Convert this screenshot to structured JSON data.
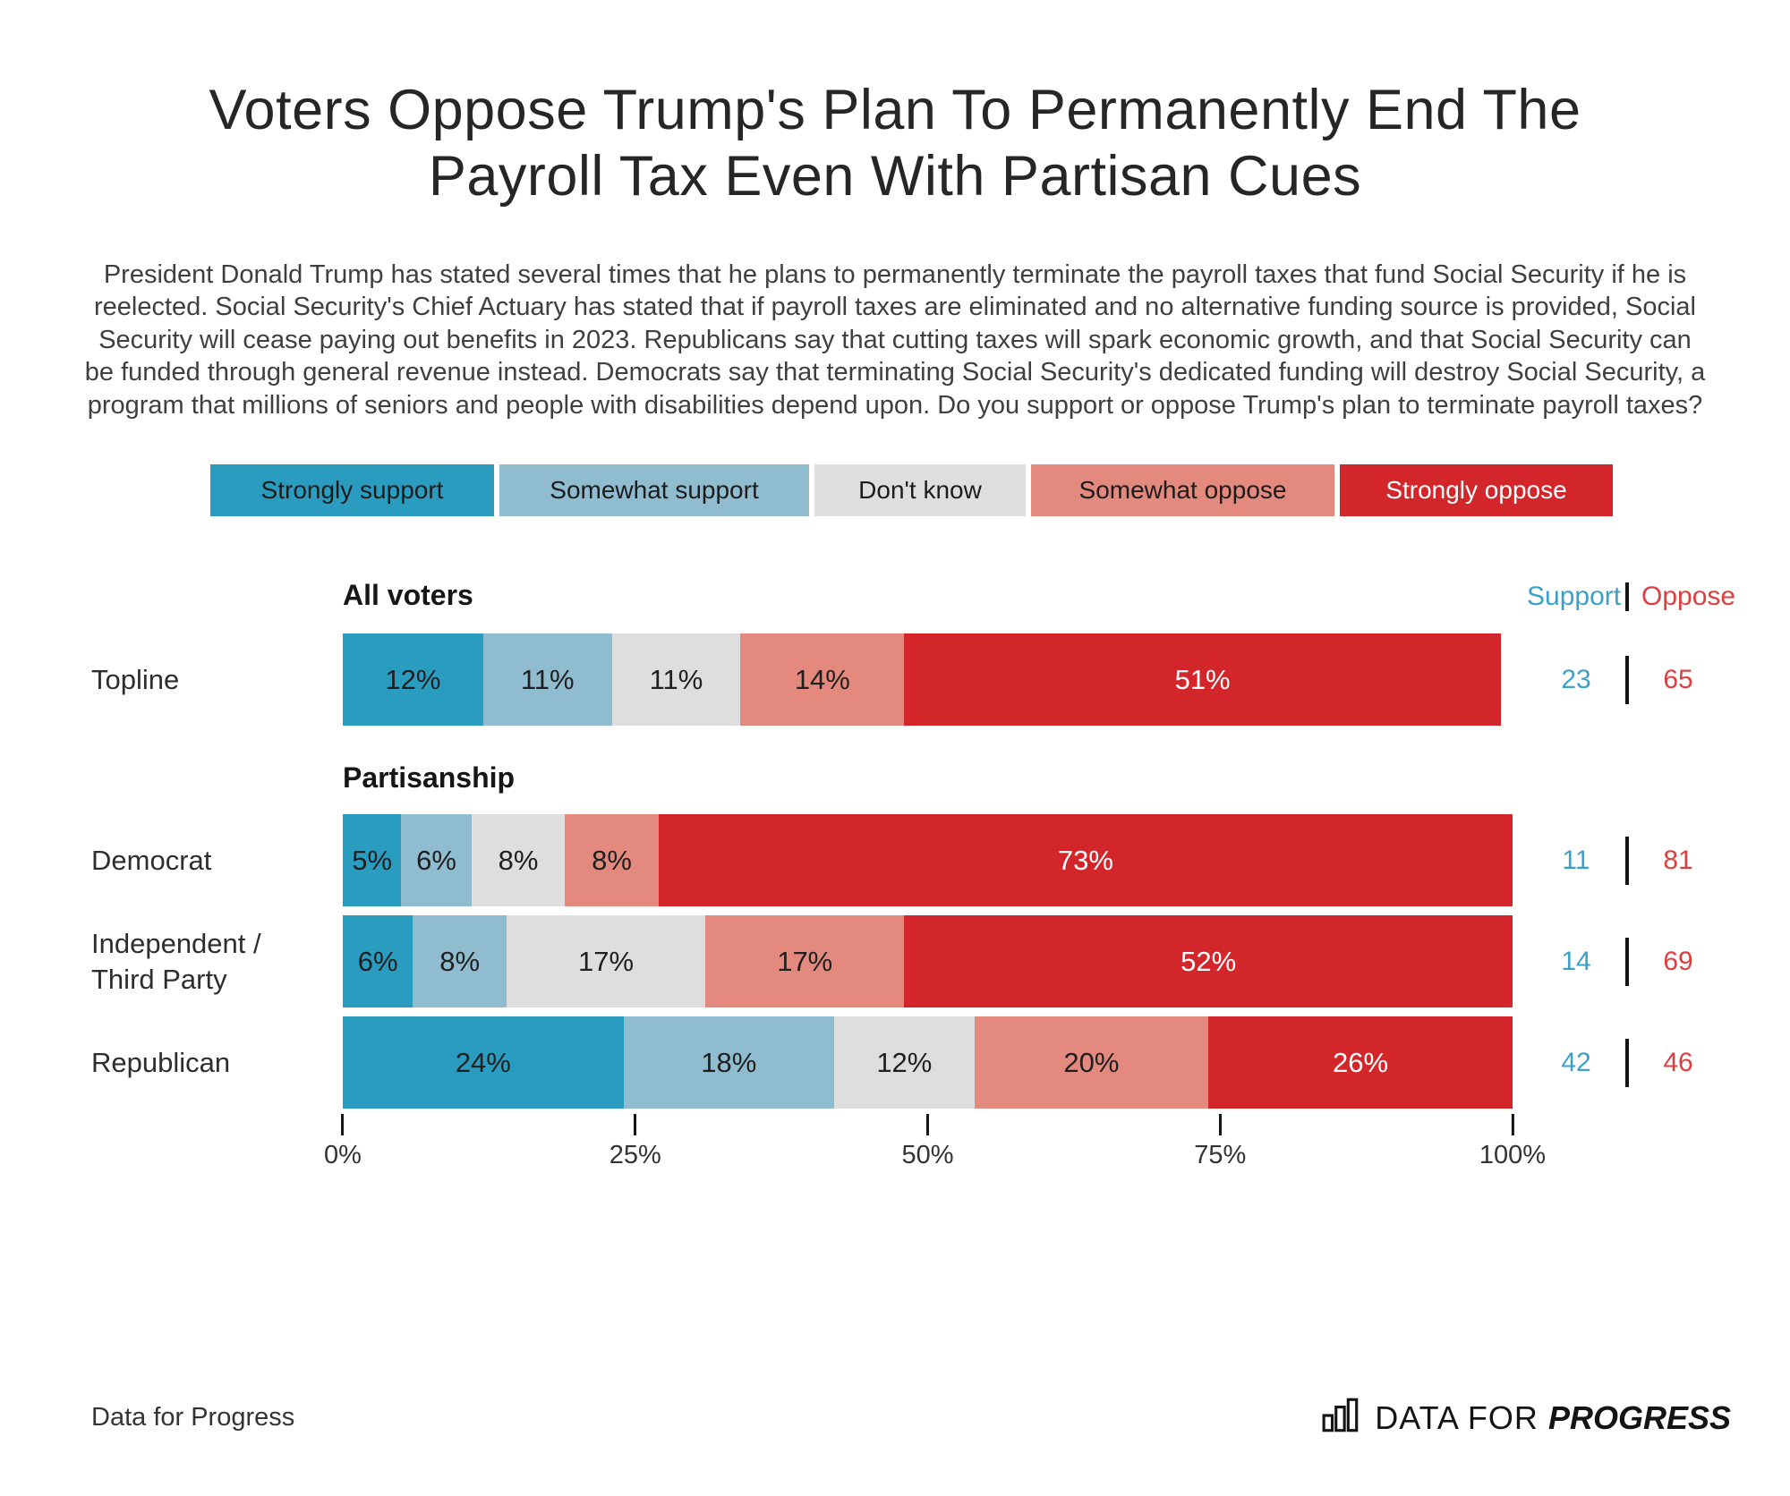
{
  "title": "Voters Oppose Trump's Plan To Permanently End The Payroll Tax Even With Partisan Cues",
  "subtitle": "President Donald Trump has stated several times that he plans to permanently terminate the payroll taxes that fund Social Security if he is reelected. Social Security's Chief Actuary has stated that if payroll taxes are eliminated and no alternative funding source is provided, Social Security will cease paying out benefits in 2023. Republicans say that cutting taxes will spark economic growth, and that Social Security can be funded through general revenue instead. Democrats say that terminating Social Security's dedicated funding will destroy Social Security, a program that millions of seniors and people with disabilities depend upon. Do you support or oppose Trump's plan to terminate payroll taxes?",
  "legend": [
    {
      "label": "Strongly support",
      "color": "#2a9cc0",
      "text_color": "#1c1c1c"
    },
    {
      "label": "Somewhat support",
      "color": "#90bcd0",
      "text_color": "#1c1c1c"
    },
    {
      "label": "Don't know",
      "color": "#dedede",
      "text_color": "#1c1c1c"
    },
    {
      "label": "Somewhat oppose",
      "color": "#e4897d",
      "text_color": "#1c1c1c"
    },
    {
      "label": "Strongly oppose",
      "color": "#d2262b",
      "text_color": "#ffffff"
    }
  ],
  "section_all_voters": "All voters",
  "section_partisanship": "Partisanship",
  "support_header": "Support",
  "oppose_header": "Oppose",
  "rows": [
    {
      "label": "Topline",
      "support": "23",
      "oppose": "65"
    },
    {
      "label": "Democrat",
      "support": "11",
      "oppose": "81"
    },
    {
      "label": "Independent / Third Party",
      "support": "14",
      "oppose": "69"
    },
    {
      "label": "Republican",
      "support": "42",
      "oppose": "46"
    }
  ],
  "axis": {
    "ticks": [
      "0%",
      "25%",
      "50%",
      "75%",
      "100%"
    ]
  },
  "footer": {
    "source": "Data for Progress",
    "logo_prefix": "DATA FOR",
    "logo_suffix": "PROGRESS"
  },
  "colors": {
    "support_accent": "#3ba1c9",
    "oppose_accent": "#e03e3e",
    "divider": "#141414"
  },
  "chart_data": {
    "type": "bar",
    "stacked": true,
    "orientation": "horizontal",
    "title": "Voters Oppose Trump's Plan To Permanently End The Payroll Tax Even With Partisan Cues",
    "categories": [
      "Topline",
      "Democrat",
      "Independent / Third Party",
      "Republican"
    ],
    "category_groups": {
      "All voters": [
        "Topline"
      ],
      "Partisanship": [
        "Democrat",
        "Independent / Third Party",
        "Republican"
      ]
    },
    "series": [
      {
        "name": "Strongly support",
        "values": [
          12,
          5,
          6,
          24
        ],
        "color": "#2a9cc0",
        "label_color": "#1f1f1f"
      },
      {
        "name": "Somewhat support",
        "values": [
          11,
          6,
          8,
          18
        ],
        "color": "#90bcd0",
        "label_color": "#1f1f1f"
      },
      {
        "name": "Don't know",
        "values": [
          11,
          8,
          17,
          12
        ],
        "color": "#dedede",
        "label_color": "#1f1f1f"
      },
      {
        "name": "Somewhat oppose",
        "values": [
          14,
          8,
          17,
          20
        ],
        "color": "#e4897d",
        "label_color": "#1f1f1f"
      },
      {
        "name": "Strongly oppose",
        "values": [
          51,
          73,
          52,
          26
        ],
        "color": "#d2262b",
        "label_color": "#ffffff"
      }
    ],
    "support_totals": [
      23,
      11,
      14,
      42
    ],
    "oppose_totals": [
      65,
      81,
      69,
      46
    ],
    "xlim": [
      0,
      100
    ],
    "x_ticks": [
      "0%",
      "25%",
      "50%",
      "75%",
      "100%"
    ],
    "legend_position": "top",
    "grid": false
  }
}
